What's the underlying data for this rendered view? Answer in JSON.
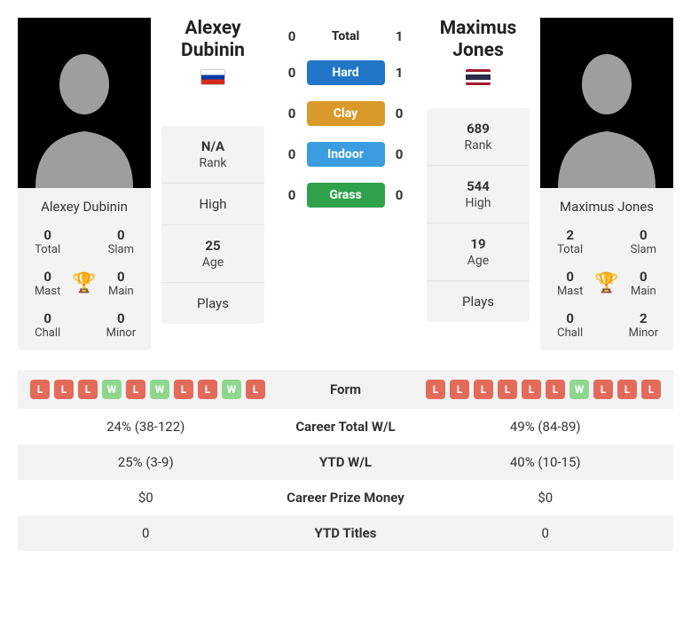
{
  "player1": {
    "name": "Alexey Dubinin",
    "flag": "ru",
    "rank": {
      "value": "N/A",
      "label": "Rank"
    },
    "high": {
      "value": "",
      "label": "High"
    },
    "age": {
      "value": "25",
      "label": "Age"
    },
    "plays": {
      "value": "",
      "label": "Plays"
    },
    "titles": {
      "total": {
        "value": "0",
        "label": "Total"
      },
      "slam": {
        "value": "0",
        "label": "Slam"
      },
      "mast": {
        "value": "0",
        "label": "Mast"
      },
      "main": {
        "value": "0",
        "label": "Main"
      },
      "chall": {
        "value": "0",
        "label": "Chall"
      },
      "minor": {
        "value": "0",
        "label": "Minor"
      }
    },
    "form": [
      "L",
      "L",
      "L",
      "W",
      "L",
      "W",
      "L",
      "L",
      "W",
      "L"
    ],
    "careerWL": "24% (38-122)",
    "ytdWL": "25% (3-9)",
    "prizeMoney": "$0",
    "ytdTitles": "0"
  },
  "player2": {
    "name": "Maximus Jones",
    "flag": "th",
    "rank": {
      "value": "689",
      "label": "Rank"
    },
    "high": {
      "value": "544",
      "label": "High"
    },
    "age": {
      "value": "19",
      "label": "Age"
    },
    "plays": {
      "value": "",
      "label": "Plays"
    },
    "titles": {
      "total": {
        "value": "2",
        "label": "Total"
      },
      "slam": {
        "value": "0",
        "label": "Slam"
      },
      "mast": {
        "value": "0",
        "label": "Mast"
      },
      "main": {
        "value": "0",
        "label": "Main"
      },
      "chall": {
        "value": "0",
        "label": "Chall"
      },
      "minor": {
        "value": "2",
        "label": "Minor"
      }
    },
    "form": [
      "L",
      "L",
      "L",
      "L",
      "L",
      "L",
      "W",
      "L",
      "L",
      "L"
    ],
    "careerWL": "49% (84-89)",
    "ytdWL": "40% (10-15)",
    "prizeMoney": "$0",
    "ytdTitles": "0"
  },
  "h2h": {
    "total": {
      "label": "Total",
      "p1": "0",
      "p2": "1",
      "color": null
    },
    "hard": {
      "label": "Hard",
      "p1": "0",
      "p2": "1",
      "color": "#2176c7"
    },
    "clay": {
      "label": "Clay",
      "p1": "0",
      "p2": "0",
      "color": "#d99a2b"
    },
    "indoor": {
      "label": "Indoor",
      "p1": "0",
      "p2": "0",
      "color": "#3b9de0"
    },
    "grass": {
      "label": "Grass",
      "p1": "0",
      "p2": "0",
      "color": "#2fa14b"
    }
  },
  "bottom": {
    "form": "Form",
    "careerWL": "Career Total W/L",
    "ytdWL": "YTD W/L",
    "prizeMoney": "Career Prize Money",
    "ytdTitles": "YTD Titles"
  },
  "colors": {
    "silhouette": "#9e9e9e",
    "trophyColor": "#3b8ed8",
    "chipWin": "#8fd78f",
    "chipLoss": "#e46a5a"
  }
}
